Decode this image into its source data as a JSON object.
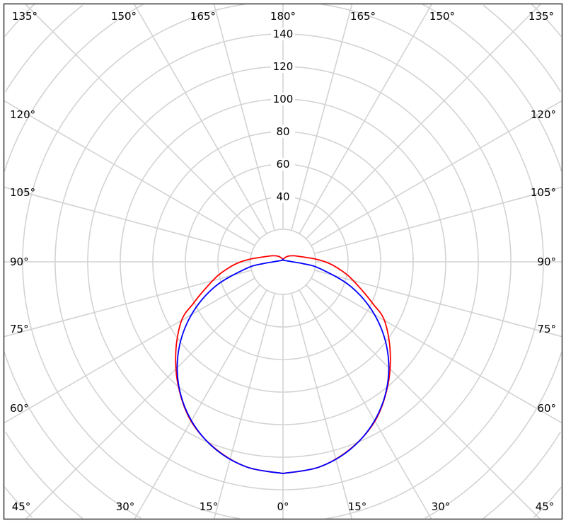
{
  "chart_data": {
    "type": "polar",
    "title": "",
    "angle_unit": "degrees",
    "angle_zero": "bottom",
    "symmetric": true,
    "grid": true,
    "radial_range": [
      0,
      140
    ],
    "radial_ticks": [
      40,
      60,
      80,
      100,
      120,
      140
    ],
    "radial_tick_labels": [
      "40",
      "60",
      "80",
      "100",
      "120",
      "140"
    ],
    "angle_labels": {
      "top": [
        "135°",
        "150°",
        "165°",
        "180°",
        "165°",
        "150°",
        "135°"
      ],
      "left": [
        "120°",
        "105°",
        "90°",
        "75°",
        "60°"
      ],
      "right": [
        "120°",
        "105°",
        "90°",
        "75°",
        "60°"
      ],
      "bottom": [
        "45°",
        "30°",
        "15°",
        "0°",
        "15°",
        "30°",
        "45°"
      ]
    },
    "series": [
      {
        "color": "#ff0000",
        "angles": [
          0,
          10,
          20,
          30,
          40,
          50,
          60,
          65,
          70,
          78,
          85,
          90,
          95,
          100,
          110,
          120,
          140,
          160,
          175,
          180
        ],
        "values": [
          130,
          128,
          122,
          113,
          100,
          86,
          72,
          61,
          52,
          41,
          32,
          26,
          20,
          15,
          10,
          7.5,
          4.5,
          2.5,
          1.5,
          1.5
        ]
      },
      {
        "color": "#0000ff",
        "angles": [
          0,
          10,
          20,
          30,
          40,
          50,
          60,
          70,
          80,
          85,
          90,
          100,
          120,
          150,
          175,
          180
        ],
        "values": [
          130,
          128,
          122.2,
          112.6,
          99.6,
          83.6,
          65,
          44.5,
          22.6,
          12,
          6,
          3,
          1.5,
          1,
          1.5,
          1.5
        ]
      }
    ]
  }
}
